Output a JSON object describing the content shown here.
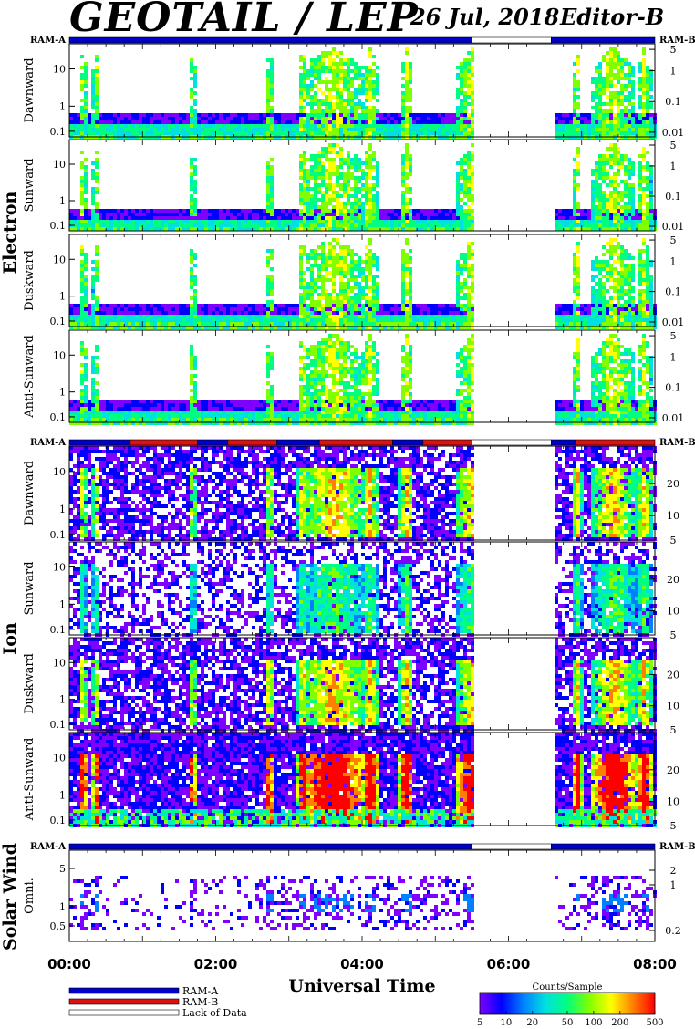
{
  "header": {
    "title": "GEOTAIL / LEP",
    "date": "26 Jul, 2018",
    "editor": "Editor-B"
  },
  "colors": {
    "ram_a": "#0000cc",
    "ram_b": "#dd1111",
    "lack_of_data": "#ffffff",
    "colormap": [
      "#8000ff",
      "#0000ff",
      "#0080ff",
      "#00e0e0",
      "#00ff80",
      "#80ff00",
      "#ffff00",
      "#ff8000",
      "#ff0000"
    ]
  },
  "chart_data": [
    {
      "type": "heatmap",
      "group": "Electron",
      "panels": [
        {
          "label": "Dawnward",
          "left_ticks": [
            "10",
            "1",
            "0.1"
          ],
          "right_ticks": [
            "5",
            "1",
            "0.1",
            "0.01"
          ],
          "data_gaps": [
            [
              "05:30",
              "06:35"
            ]
          ]
        },
        {
          "label": "Sunward",
          "left_ticks": [
            "10",
            "1",
            "0.1"
          ],
          "right_ticks": [
            "5",
            "1",
            "0.1",
            "0.01"
          ],
          "data_gaps": [
            [
              "05:30",
              "06:35"
            ]
          ]
        },
        {
          "label": "Duskward",
          "left_ticks": [
            "10",
            "1",
            "0.1"
          ],
          "right_ticks": [
            "5",
            "1",
            "0.1",
            "0.01"
          ],
          "data_gaps": [
            [
              "05:30",
              "06:35"
            ]
          ]
        },
        {
          "label": "Anti-Sunward",
          "left_ticks": [
            "10",
            "1",
            "0.1"
          ],
          "right_ticks": [
            "5",
            "1",
            "0.1",
            "0.01"
          ],
          "data_gaps": [
            [
              "05:30",
              "06:35"
            ]
          ]
        }
      ],
      "mode_bar": {
        "left_label": "RAM-A",
        "right_label": "RAM-B",
        "segments": [
          {
            "from": "00:00",
            "to": "05:30",
            "mode": "RAM-A"
          },
          {
            "from": "05:30",
            "to": "06:35",
            "mode": "Lack of Data"
          },
          {
            "from": "06:35",
            "to": "08:00",
            "mode": "RAM-A"
          }
        ]
      }
    },
    {
      "type": "heatmap",
      "group": "Ion",
      "panels": [
        {
          "label": "Dawnward",
          "left_ticks": [
            "10",
            "1",
            "0.1"
          ],
          "right_ticks": [
            "20",
            "10",
            "5"
          ],
          "data_gaps": [
            [
              "05:30",
              "06:35"
            ]
          ]
        },
        {
          "label": "Sunward",
          "left_ticks": [
            "10",
            "1",
            "0.1"
          ],
          "right_ticks": [
            "20",
            "10",
            "5"
          ],
          "data_gaps": [
            [
              "05:30",
              "06:35"
            ]
          ]
        },
        {
          "label": "Duskward",
          "left_ticks": [
            "10",
            "1",
            "0.1"
          ],
          "right_ticks": [
            "20",
            "10",
            "5"
          ],
          "data_gaps": [
            [
              "05:30",
              "06:35"
            ]
          ]
        },
        {
          "label": "Anti-Sunward",
          "left_ticks": [
            "10",
            "1",
            "0.1"
          ],
          "right_ticks": [
            "20",
            "10",
            "5"
          ],
          "data_gaps": [
            [
              "05:30",
              "06:35"
            ]
          ]
        }
      ],
      "mode_bar": {
        "left_label": "RAM-A",
        "right_label": "RAM-B",
        "segments": [
          {
            "from": "00:00",
            "to": "00:50",
            "mode": "RAM-A"
          },
          {
            "from": "00:50",
            "to": "01:45",
            "mode": "RAM-B"
          },
          {
            "from": "01:45",
            "to": "02:10",
            "mode": "RAM-A"
          },
          {
            "from": "02:10",
            "to": "02:50",
            "mode": "RAM-B"
          },
          {
            "from": "02:50",
            "to": "03:25",
            "mode": "RAM-A"
          },
          {
            "from": "03:25",
            "to": "04:25",
            "mode": "RAM-B"
          },
          {
            "from": "04:25",
            "to": "04:50",
            "mode": "RAM-A"
          },
          {
            "from": "04:50",
            "to": "05:30",
            "mode": "RAM-B"
          },
          {
            "from": "05:30",
            "to": "06:35",
            "mode": "Lack of Data"
          },
          {
            "from": "06:35",
            "to": "06:55",
            "mode": "RAM-A"
          },
          {
            "from": "06:55",
            "to": "08:00",
            "mode": "RAM-B"
          }
        ]
      }
    },
    {
      "type": "heatmap",
      "group": "Solar Wind",
      "panels": [
        {
          "label": "Omni.",
          "left_ticks": [
            "5",
            "1",
            "0.5"
          ],
          "right_ticks": [
            "2",
            "1",
            "0.2"
          ],
          "data_gaps": [
            [
              "05:30",
              "06:35"
            ]
          ]
        }
      ],
      "mode_bar": {
        "left_label": "RAM-A",
        "right_label": "RAM-B",
        "segments": [
          {
            "from": "00:00",
            "to": "05:30",
            "mode": "RAM-A"
          },
          {
            "from": "05:30",
            "to": "06:35",
            "mode": "Lack of Data"
          },
          {
            "from": "06:35",
            "to": "08:00",
            "mode": "RAM-A"
          }
        ]
      }
    }
  ],
  "x_axis": {
    "label": "Universal Time",
    "ticks": [
      "00:00",
      "02:00",
      "04:00",
      "06:00",
      "08:00"
    ],
    "range": [
      "00:00",
      "08:00"
    ]
  },
  "legend": {
    "items": [
      {
        "label": "RAM-A",
        "color": "#0000cc"
      },
      {
        "label": "RAM-B",
        "color": "#dd1111"
      },
      {
        "label": "Lack of Data",
        "color": "#ffffff"
      }
    ]
  },
  "colorbar": {
    "title": "Counts/Sample",
    "ticks": [
      "5",
      "10",
      "20",
      "50",
      "100",
      "200",
      "500"
    ]
  }
}
